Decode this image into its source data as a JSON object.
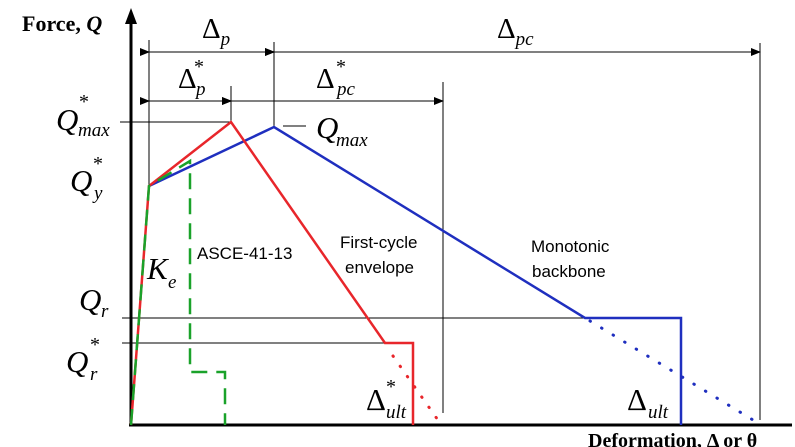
{
  "axes": {
    "y_label": "Force, ",
    "y_symbol": "Q",
    "x_label": "Deformation, Δ or θ"
  },
  "dimensions": {
    "delta_p": {
      "base": "Δ",
      "sub": "p"
    },
    "delta_pc": {
      "base": "Δ",
      "sub": "pc"
    },
    "delta_p_star": {
      "base": "Δ",
      "sub": "p",
      "sup": "*"
    },
    "delta_pc_star": {
      "base": "Δ",
      "sub": "pc",
      "sup": "*"
    }
  },
  "levels": {
    "qmax_star": {
      "base": "Q",
      "sub": "max",
      "sup": "*"
    },
    "qy_star": {
      "base": "Q",
      "sub": "y",
      "sup": "*"
    },
    "qr": {
      "base": "Q",
      "sub": "r"
    },
    "qr_star": {
      "base": "Q",
      "sub": "r",
      "sup": "*"
    }
  },
  "annotations": {
    "qmax": {
      "base": "Q",
      "sub": "max"
    },
    "ke": {
      "base": "K",
      "sub": "e"
    },
    "asce": "ASCE-41-13",
    "first_cycle_line1": "First-cycle",
    "first_cycle_line2": "envelope",
    "monotonic_line1": "Monotonic",
    "monotonic_line2": "backbone",
    "delta_ult_star": {
      "base": "Δ",
      "sub": "ult",
      "sup": "*"
    },
    "delta_ult": {
      "base": "Δ",
      "sub": "ult"
    }
  },
  "colors": {
    "axis": "#000000",
    "first_cycle": "#e8262b",
    "monotonic": "#1f2fbf",
    "asce": "#1aa22a",
    "guide": "#000000"
  }
}
